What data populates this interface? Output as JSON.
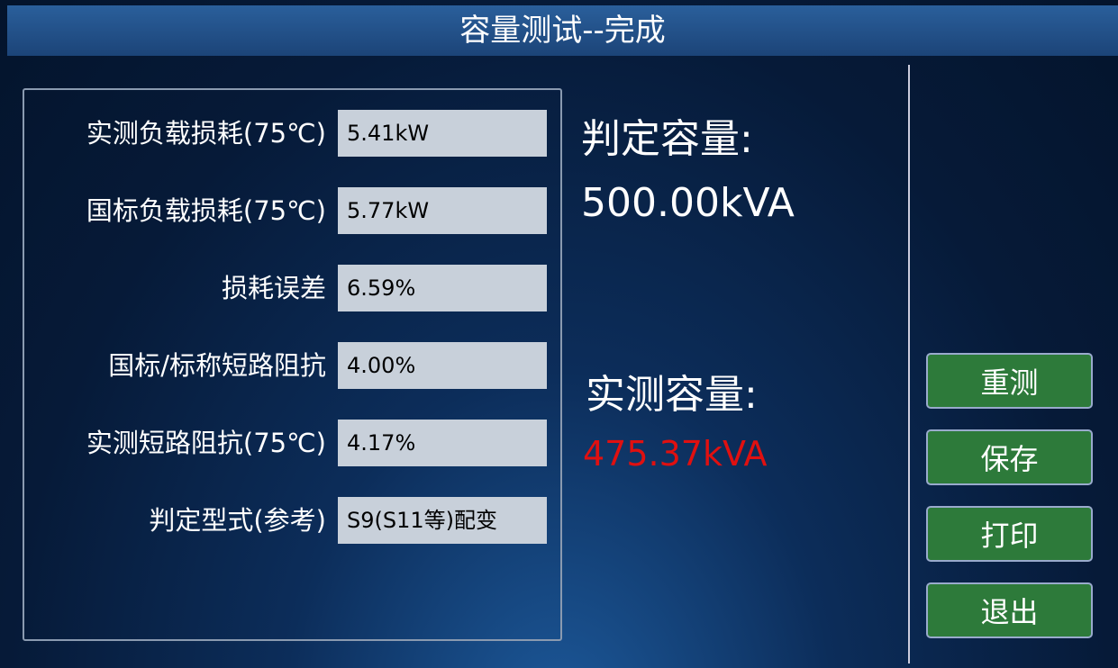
{
  "header": {
    "title": "容量测试--完成"
  },
  "fields": [
    {
      "label": "实测负载损耗(75℃)",
      "value": "5.41kW"
    },
    {
      "label": "国标负载损耗(75℃)",
      "value": "5.77kW"
    },
    {
      "label": "损耗误差",
      "value": "6.59%"
    },
    {
      "label": "国标/标称短路阻抗",
      "value": "4.00%"
    },
    {
      "label": "实测短路阻抗(75℃)",
      "value": "4.17%"
    },
    {
      "label": "判定型式(参考)",
      "value": "S9(S11等)配变"
    }
  ],
  "judged": {
    "label": "判定容量:",
    "value": "500.00kVA"
  },
  "measured": {
    "label": "实测容量:",
    "value": "475.37kVA"
  },
  "buttons": [
    "重测",
    "保存",
    "打印",
    "退出"
  ]
}
